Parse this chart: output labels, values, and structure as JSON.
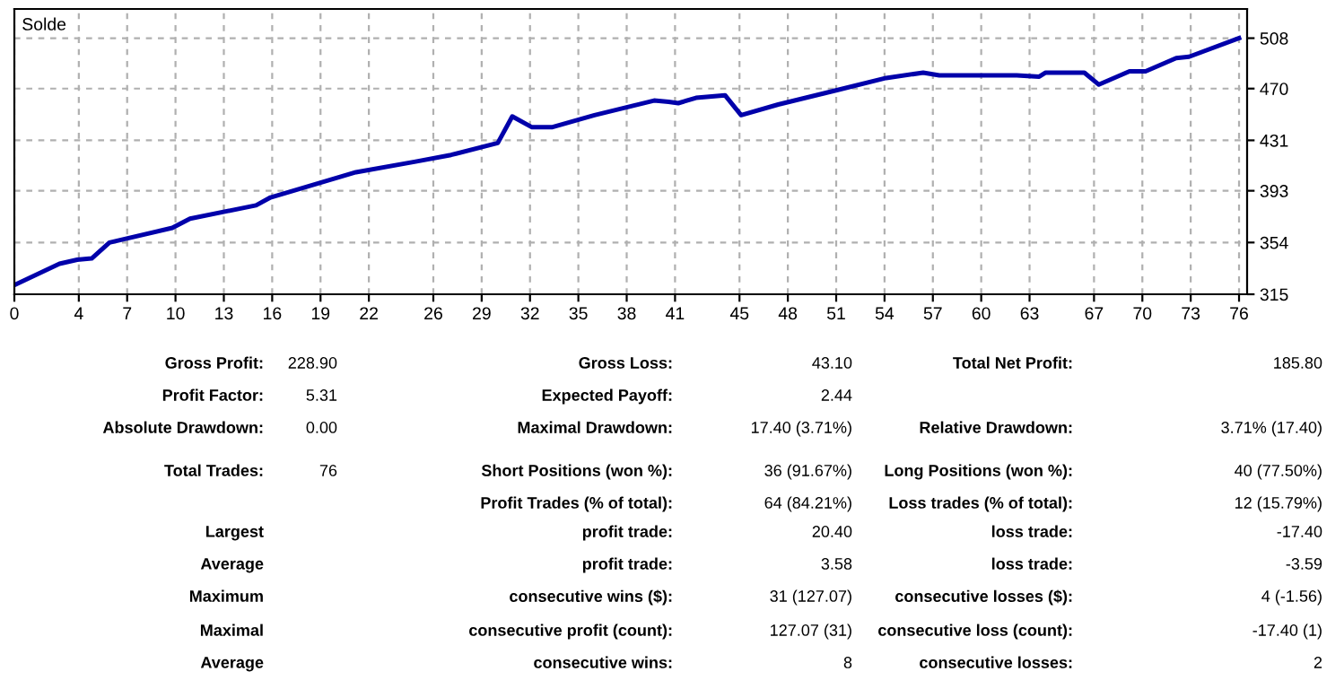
{
  "chart_data": [
    {
      "type": "line",
      "title": "Solde",
      "x": [
        0,
        2.8,
        3.9,
        4.8,
        5.9,
        9.8,
        10.9,
        15,
        15.9,
        21.2,
        24.9,
        27.1,
        30,
        30.9,
        32.1,
        33.4,
        36,
        39.7,
        40.6,
        41.2,
        42.3,
        44.1,
        45.1,
        47.4,
        51.1,
        54.1,
        56.4,
        57.4,
        62.2,
        63.6,
        64,
        66.4,
        67.3,
        69.2,
        70.2,
        72.1,
        72.9,
        76
      ],
      "series": [
        {
          "color": "#0000aa",
          "values": [
            322,
            338,
            341,
            342,
            354,
            365,
            372,
            382,
            388,
            407,
            415,
            420,
            429,
            449,
            441,
            441,
            450,
            461,
            460,
            459,
            463,
            465,
            450,
            458,
            469,
            478,
            482,
            480,
            480,
            479,
            482,
            482,
            473,
            483,
            483,
            493,
            494,
            508
          ]
        }
      ],
      "xlim": [
        0,
        76.5
      ],
      "ylim": [
        315,
        530
      ],
      "xticks": [
        0,
        4,
        7,
        10,
        13,
        16,
        19,
        22,
        26,
        29,
        32,
        35,
        38,
        41,
        45,
        48,
        51,
        54,
        57,
        60,
        63,
        67,
        70,
        73,
        76
      ],
      "yticks": [
        315,
        354,
        393,
        431,
        470,
        508
      ],
      "grid": true,
      "legend": false,
      "line_style": "solid",
      "marker": "none"
    },
    {
      "type": "other",
      "annotations": [
        "Gross Profit:",
        "228.90",
        "Gross Loss:",
        "43.10",
        "Total Net Profit:",
        "185.80",
        "Profit Factor:",
        "5.31",
        "Expected Payoff:",
        "2.44",
        "Absolute Drawdown:",
        "0.00",
        "Maximal Drawdown:",
        "17.40 (3.71%)",
        "Relative Drawdown:",
        "3.71% (17.40)",
        "Total Trades:",
        "76",
        "Short Positions (won %):",
        "36 (91.67%)",
        "Long Positions (won %):",
        "40 (77.50%)",
        "Profit Trades (% of total):",
        "64 (84.21%)",
        "Loss trades (% of total):",
        "12 (15.79%)",
        "Largest",
        "profit trade:",
        "20.40",
        "loss trade:",
        "-17.40",
        "Average",
        "profit trade:",
        "3.58",
        "loss trade:",
        "-3.59",
        "Maximum",
        "consecutive wins ($):",
        "31 (127.07)",
        "consecutive losses ($):",
        "4 (-1.56)",
        "Maximal",
        "consecutive profit (count):",
        "127.07 (31)",
        "consecutive loss (count):",
        "-17.40 (1)",
        "Average",
        "consecutive wins:",
        "8",
        "consecutive losses:",
        "2"
      ]
    }
  ]
}
